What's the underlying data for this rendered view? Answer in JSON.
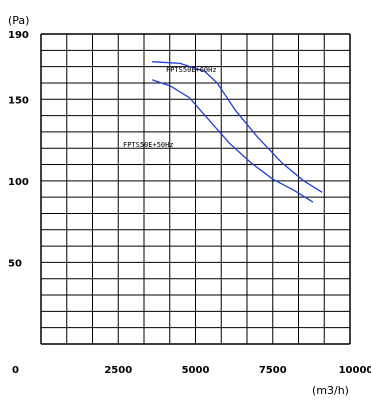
{
  "chart_data": {
    "type": "line",
    "title": "",
    "xlabel": "(m3/h)",
    "ylabel": "(Pa)",
    "xlim": [
      0,
      10000
    ],
    "ylim": [
      0,
      190
    ],
    "grid": true,
    "x_ticks": [
      {
        "value": 0,
        "label": "0"
      },
      {
        "value": 2500,
        "label": "2500"
      },
      {
        "value": 5000,
        "label": "5000"
      },
      {
        "value": 7500,
        "label": "7500"
      },
      {
        "value": 10000,
        "label": "10000"
      }
    ],
    "y_ticks": [
      {
        "value": 50,
        "label": "50"
      },
      {
        "value": 100,
        "label": "100"
      },
      {
        "value": 150,
        "label": "150"
      },
      {
        "value": 190,
        "label": "190"
      }
    ],
    "series": [
      {
        "name": "FPTS50E+60Hz",
        "color": "#1f3fd8",
        "points": [
          [
            3600,
            173
          ],
          [
            4500,
            172
          ],
          [
            5300,
            167
          ],
          [
            5700,
            160
          ],
          [
            6300,
            143
          ],
          [
            7000,
            127
          ],
          [
            7800,
            111
          ],
          [
            8500,
            100
          ],
          [
            9100,
            93
          ]
        ]
      },
      {
        "name": "FPTS50E+50Hz",
        "color": "#1f3fd8",
        "points": [
          [
            3600,
            162
          ],
          [
            4200,
            158
          ],
          [
            4800,
            151
          ],
          [
            5400,
            138
          ],
          [
            6100,
            123
          ],
          [
            6800,
            111
          ],
          [
            7500,
            101
          ],
          [
            8200,
            94
          ],
          [
            8800,
            87
          ]
        ]
      }
    ]
  }
}
